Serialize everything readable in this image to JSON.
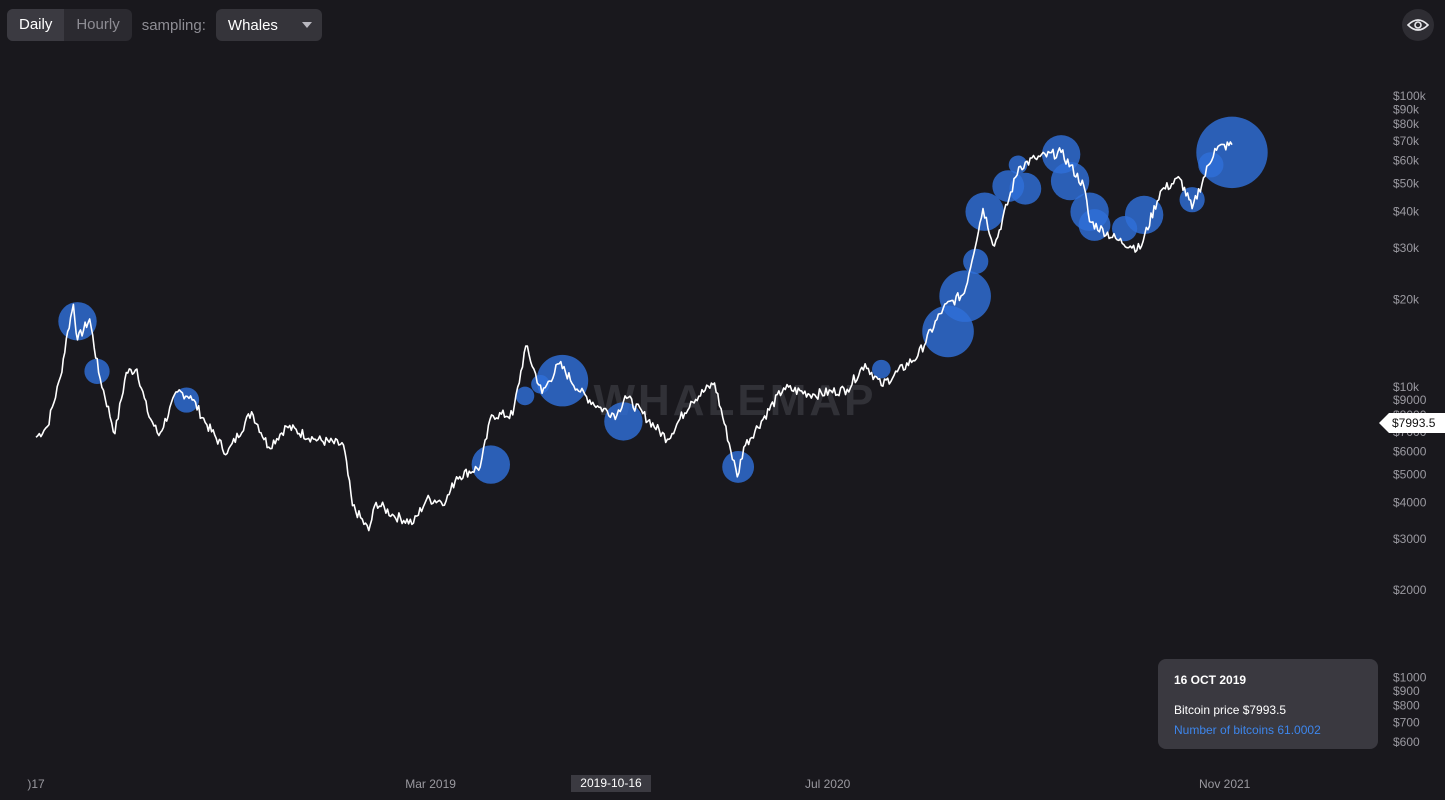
{
  "controls": {
    "interval_options": [
      "Daily",
      "Hourly"
    ],
    "interval_selected": "Daily",
    "sampling_label": "sampling:",
    "sampling_value": "Whales"
  },
  "icons": {
    "visibility_toggle": "eye-icon",
    "dropdown": "chevron-down-icon"
  },
  "watermark": "WHALEMAP",
  "tooltip": {
    "date": "16 OCT 2019",
    "price_line": "Bitcoin price $7993.5",
    "bitcoins_line": "Number of bitcoins 61.0002"
  },
  "crosshair": {
    "price_label": "$7993.5",
    "date_label": "2019-10-16"
  },
  "colors": {
    "background": "#19181d",
    "price_line": "#ffffff",
    "bubble": "#2f6fd8",
    "tooltip_accent": "#3d86ec"
  },
  "chart_data": {
    "type": "line",
    "scale": "log",
    "x_tick_labels": [
      ")17",
      "Mar 2019",
      "Jul 2020",
      "Nov 2021"
    ],
    "y_tick_labels": [
      "$100k",
      "$90k",
      "$80k",
      "$70k",
      "$60k",
      "$50k",
      "$40k",
      "$30k",
      "$20k",
      "$10k",
      "$9000",
      "$8000",
      "$7000",
      "$6000",
      "$5000",
      "$4000",
      "$3000",
      "$2000",
      "$1000",
      "$900",
      "$800",
      "$700",
      "$600"
    ],
    "ylim": [
      550,
      110000
    ],
    "series": [
      {
        "values": [
          [
            "2017-11-01",
            6700
          ],
          [
            "2017-11-15",
            7300
          ],
          [
            "2017-12-01",
            10800
          ],
          [
            "2017-12-10",
            15500
          ],
          [
            "2017-12-17",
            19200
          ],
          [
            "2017-12-22",
            14500
          ],
          [
            "2018-01-06",
            17100
          ],
          [
            "2018-01-17",
            11200
          ],
          [
            "2018-02-06",
            6900
          ],
          [
            "2018-02-20",
            11200
          ],
          [
            "2018-03-05",
            11500
          ],
          [
            "2018-03-18",
            8200
          ],
          [
            "2018-04-01",
            6800
          ],
          [
            "2018-04-24",
            9600
          ],
          [
            "2018-05-10",
            9300
          ],
          [
            "2018-05-30",
            7400
          ],
          [
            "2018-06-24",
            5900
          ],
          [
            "2018-07-24",
            8200
          ],
          [
            "2018-08-14",
            6200
          ],
          [
            "2018-09-05",
            7300
          ],
          [
            "2018-10-10",
            6600
          ],
          [
            "2018-11-14",
            6300
          ],
          [
            "2018-11-25",
            3900
          ],
          [
            "2018-12-15",
            3200
          ],
          [
            "2018-12-24",
            4000
          ],
          [
            "2019-01-15",
            3600
          ],
          [
            "2019-02-08",
            3400
          ],
          [
            "2019-02-24",
            4100
          ],
          [
            "2019-03-20",
            4050
          ],
          [
            "2019-04-02",
            4900
          ],
          [
            "2019-05-01",
            5300
          ],
          [
            "2019-05-15",
            8000
          ],
          [
            "2019-06-10",
            8000
          ],
          [
            "2019-06-26",
            13800
          ],
          [
            "2019-07-16",
            9500
          ],
          [
            "2019-08-06",
            12000
          ],
          [
            "2019-09-01",
            9600
          ],
          [
            "2019-09-24",
            8500
          ],
          [
            "2019-10-16",
            7993.5
          ],
          [
            "2019-10-26",
            9300
          ],
          [
            "2019-12-17",
            6600
          ],
          [
            "2020-01-15",
            8900
          ],
          [
            "2020-02-13",
            10300
          ],
          [
            "2020-03-12",
            4900
          ],
          [
            "2020-03-20",
            6200
          ],
          [
            "2020-05-08",
            9900
          ],
          [
            "2020-06-15",
            9400
          ],
          [
            "2020-07-25",
            9800
          ],
          [
            "2020-08-16",
            12000
          ],
          [
            "2020-09-05",
            10100
          ],
          [
            "2020-10-20",
            12800
          ],
          [
            "2020-11-20",
            18600
          ],
          [
            "2020-12-16",
            21000
          ],
          [
            "2021-01-08",
            41000
          ],
          [
            "2021-01-22",
            30500
          ],
          [
            "2021-02-21",
            57000
          ],
          [
            "2021-03-13",
            61000
          ],
          [
            "2021-04-14",
            64000
          ],
          [
            "2021-05-12",
            49000
          ],
          [
            "2021-05-19",
            37000
          ],
          [
            "2021-06-22",
            32000
          ],
          [
            "2021-07-20",
            29800
          ],
          [
            "2021-08-14",
            47000
          ],
          [
            "2021-09-07",
            52000
          ],
          [
            "2021-09-22",
            41000
          ],
          [
            "2021-10-20",
            66000
          ],
          [
            "2021-11-10",
            68000
          ]
        ]
      }
    ],
    "bubbles": [
      {
        "date": "2017-12-22",
        "price": 16800,
        "size": 4
      },
      {
        "date": "2018-01-15",
        "price": 11300,
        "size": 2
      },
      {
        "date": "2018-05-05",
        "price": 9000,
        "size": 2
      },
      {
        "date": "2019-05-14",
        "price": 5400,
        "size": 4
      },
      {
        "date": "2019-06-25",
        "price": 9300,
        "size": 1
      },
      {
        "date": "2019-07-14",
        "price": 10200,
        "size": 1
      },
      {
        "date": "2019-08-10",
        "price": 10500,
        "size": 6
      },
      {
        "date": "2019-10-24",
        "price": 7600,
        "size": 4
      },
      {
        "date": "2020-03-13",
        "price": 5300,
        "size": 3
      },
      {
        "date": "2020-09-05",
        "price": 11500,
        "size": 1
      },
      {
        "date": "2020-11-26",
        "price": 15500,
        "size": 6
      },
      {
        "date": "2020-12-17",
        "price": 20500,
        "size": 6
      },
      {
        "date": "2020-12-30",
        "price": 27000,
        "size": 2
      },
      {
        "date": "2021-01-10",
        "price": 40000,
        "size": 4
      },
      {
        "date": "2021-02-08",
        "price": 49000,
        "size": 3
      },
      {
        "date": "2021-02-20",
        "price": 58000,
        "size": 1
      },
      {
        "date": "2021-03-01",
        "price": 48000,
        "size": 3
      },
      {
        "date": "2021-04-14",
        "price": 63000,
        "size": 4
      },
      {
        "date": "2021-04-25",
        "price": 51000,
        "size": 4
      },
      {
        "date": "2021-05-19",
        "price": 40000,
        "size": 4
      },
      {
        "date": "2021-05-25",
        "price": 36000,
        "size": 3
      },
      {
        "date": "2021-07-01",
        "price": 35000,
        "size": 2
      },
      {
        "date": "2021-07-25",
        "price": 39000,
        "size": 4
      },
      {
        "date": "2021-09-22",
        "price": 44000,
        "size": 2
      },
      {
        "date": "2021-10-15",
        "price": 58000,
        "size": 2
      },
      {
        "date": "2021-11-10",
        "price": 64000,
        "size": 9
      }
    ]
  }
}
